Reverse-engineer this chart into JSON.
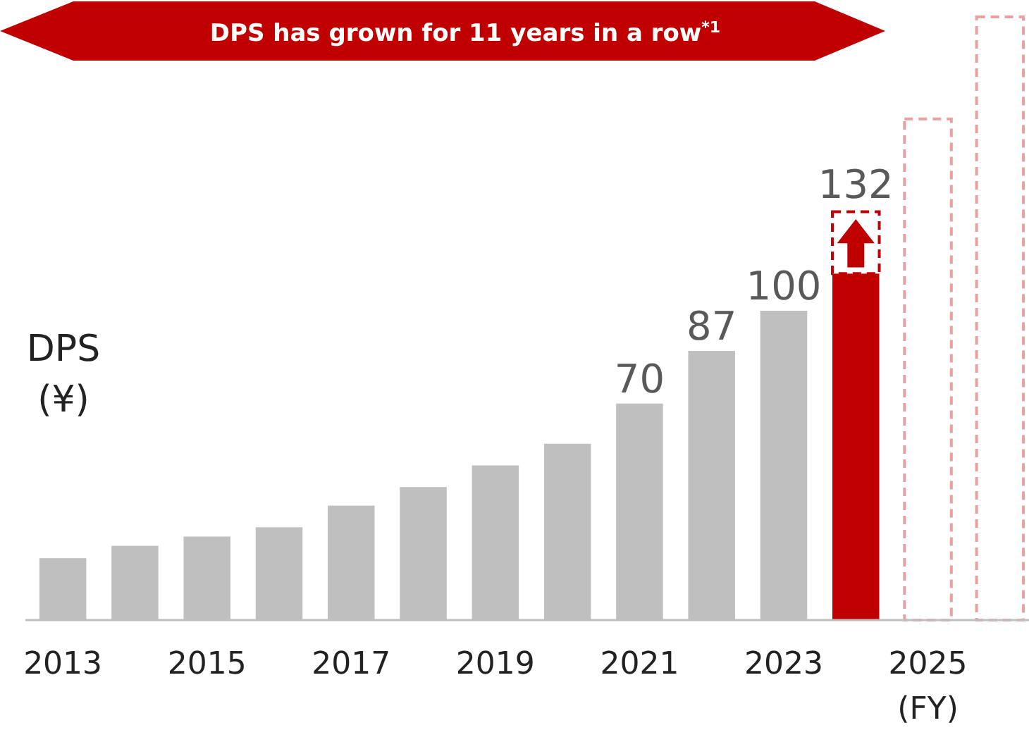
{
  "chart_data": {
    "type": "bar",
    "title": "DPS has grown for 11 years in a row$^{*1}$",
    "ylabel": "DPS\n(¥)",
    "xlabel": "(FY)",
    "categories": [
      "2013",
      null,
      "2015",
      null,
      "2017",
      null,
      "2019",
      null,
      "2021",
      null,
      "2023",
      null,
      "2025",
      null
    ],
    "stacked": true,
    "tick_labels": "x",
    "series": [
      {
        "colors": [
          "#bfbfbf",
          "#bfbfbf",
          "#bfbfbf",
          "#bfbfbf",
          "#bfbfbf",
          "#bfbfbf",
          "#bfbfbf",
          "#bfbfbf",
          "#bfbfbf",
          "#bfbfbf",
          "#bfbfbf",
          "#c00000",
          null,
          null
        ],
        "values": [
          20,
          24,
          27,
          30,
          37,
          43,
          50,
          57,
          70,
          87,
          100,
          112,
          null,
          null
        ],
        "value_labels": [
          null,
          null,
          null,
          null,
          null,
          null,
          null,
          null,
          "70",
          "87",
          "100",
          null,
          null,
          null
        ]
      },
      {
        "line_style": "dashed",
        "colors": [
          null,
          null,
          null,
          null,
          null,
          null,
          null,
          null,
          null,
          null,
          null,
          "#c00000",
          "#e8a0a0",
          "#e8a0a0"
        ],
        "values": [
          null,
          null,
          null,
          null,
          null,
          null,
          null,
          null,
          null,
          null,
          null,
          20,
          162,
          195
        ]
      }
    ],
    "totals": [
      null,
      null,
      null,
      null,
      null,
      null,
      null,
      null,
      null,
      null,
      null,
      "132",
      null,
      null
    ]
  }
}
